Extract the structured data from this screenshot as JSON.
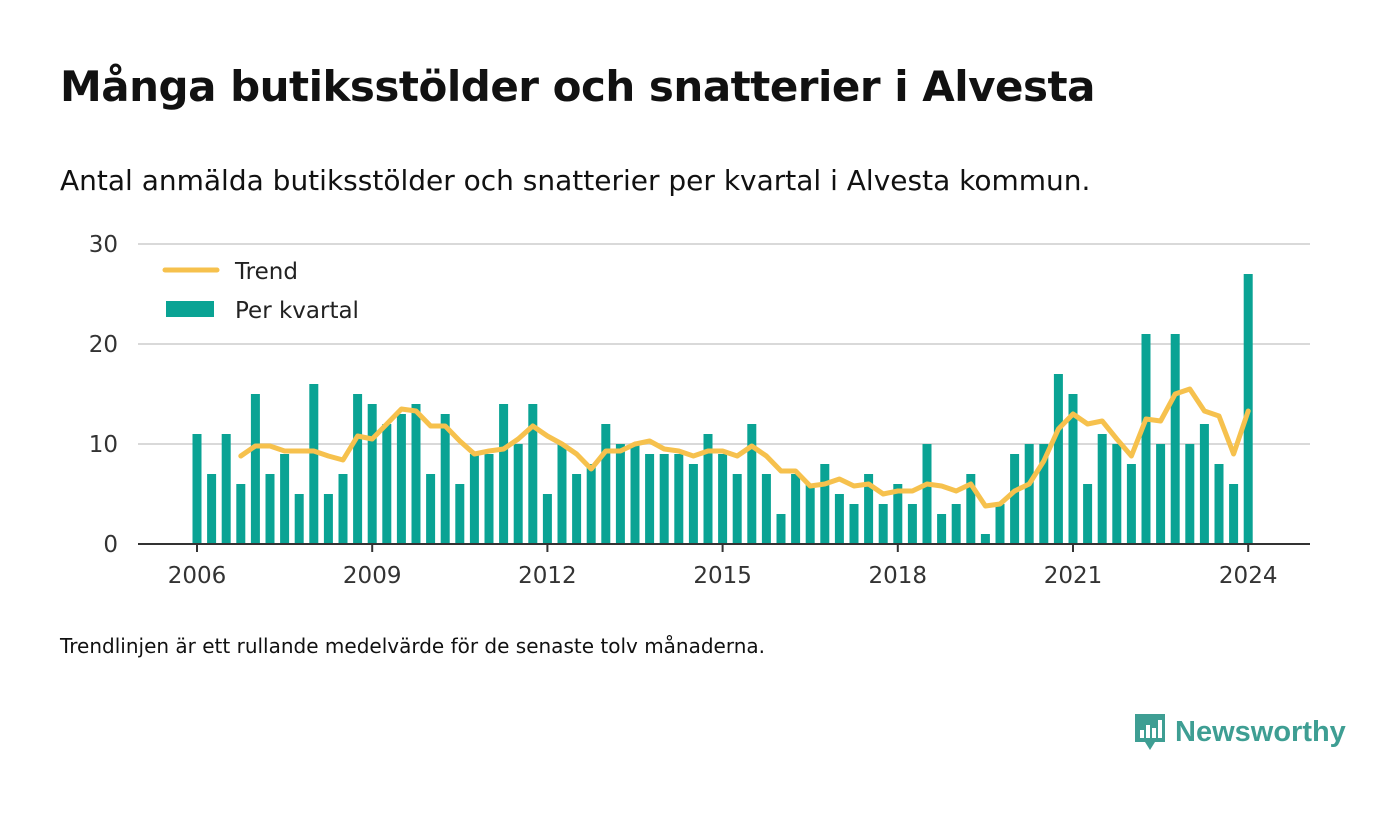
{
  "title": "Många butiksstölder och snatterier i Alvesta",
  "subtitle": "Antal anmälda butiksstölder och snatterier per kvartal i Alvesta kommun.",
  "footnote": "Trendlinjen är ett rullande medelvärde för de senaste tolv månaderna.",
  "brand": {
    "name": "Newsworthy",
    "color": "#3e9e93"
  },
  "colors": {
    "bars": "#0aa394",
    "trend": "#f6c14d",
    "grid": "#d9d9d9",
    "axis": "#333333"
  },
  "chart_data": {
    "type": "bar",
    "x_start": 2006,
    "x_ticks": [
      "2006",
      "2009",
      "2012",
      "2015",
      "2018",
      "2021",
      "2024"
    ],
    "y_ticks": [
      "0",
      "10",
      "20",
      "30"
    ],
    "ylim": [
      0,
      30
    ],
    "legend": {
      "position": "top-left",
      "entries": [
        "Trend",
        "Per kvartal"
      ]
    },
    "series": [
      {
        "name": "Per kvartal",
        "type": "bar",
        "values": [
          11,
          7,
          11,
          6,
          15,
          7,
          9,
          5,
          16,
          5,
          7,
          15,
          14,
          12,
          13,
          14,
          7,
          13,
          6,
          9,
          9,
          14,
          10,
          14,
          5,
          10,
          7,
          8,
          12,
          10,
          10,
          9,
          9,
          9,
          8,
          11,
          9,
          7,
          12,
          7,
          3,
          7,
          6,
          8,
          5,
          4,
          7,
          4,
          6,
          4,
          10,
          3,
          4,
          7,
          1,
          4,
          9,
          10,
          10,
          17,
          15,
          6,
          11,
          10,
          8,
          21,
          10,
          21,
          10,
          12,
          8,
          6,
          27
        ]
      },
      {
        "name": "Trend",
        "type": "line",
        "values": [
          null,
          null,
          null,
          8.8,
          9.8,
          9.8,
          9.3,
          9.3,
          9.3,
          8.8,
          8.4,
          10.8,
          10.5,
          12.0,
          13.5,
          13.3,
          11.8,
          11.8,
          10.3,
          9.0,
          9.3,
          9.5,
          10.5,
          11.8,
          10.8,
          10.0,
          9.0,
          7.5,
          9.3,
          9.3,
          10.0,
          10.3,
          9.5,
          9.3,
          8.8,
          9.3,
          9.3,
          8.8,
          9.8,
          8.8,
          7.3,
          7.3,
          5.8,
          6.0,
          6.5,
          5.8,
          6.0,
          5.0,
          5.3,
          5.3,
          6.0,
          5.8,
          5.3,
          6.0,
          3.8,
          4.0,
          5.3,
          6.0,
          8.3,
          11.5,
          13.0,
          12.0,
          12.3,
          10.5,
          8.8,
          12.5,
          12.3,
          15.0,
          15.5,
          13.3,
          12.8,
          9.0,
          13.3
        ]
      }
    ]
  }
}
